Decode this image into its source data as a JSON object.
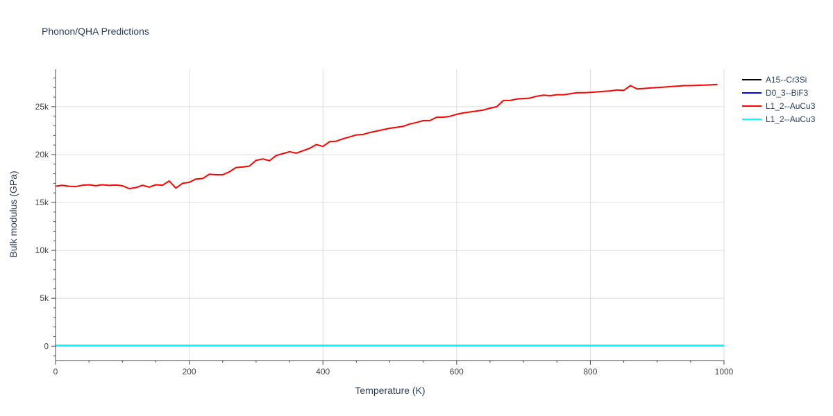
{
  "chart_data": {
    "type": "line",
    "title": "Phonon/QHA Predictions",
    "xlabel": "Temperature (K)",
    "ylabel": "Bulk modulus (GPa)",
    "xlim": [
      0,
      1000
    ],
    "ylim": [
      -1500,
      28900
    ],
    "xticks": [
      0,
      200,
      400,
      600,
      800,
      1000
    ],
    "xtick_labels": [
      "0",
      "200",
      "400",
      "600",
      "800",
      "1000"
    ],
    "yticks": [
      0,
      5000,
      10000,
      15000,
      20000,
      25000
    ],
    "ytick_labels": [
      "0",
      "5k",
      "10k",
      "15k",
      "20k",
      "25k"
    ],
    "grid": true,
    "legend_position": "top-right",
    "series": [
      {
        "name": "A15--Cr3Si",
        "color": "#000000",
        "x": [
          0,
          1000
        ],
        "y": [
          60,
          60
        ]
      },
      {
        "name": "D0_3--BiF3",
        "color": "#0000ff",
        "x": [
          0,
          1000
        ],
        "y": [
          60,
          60
        ]
      },
      {
        "name": "L1_2--AuCu3",
        "color": "#ff0000",
        "x": [
          0,
          10,
          20,
          30,
          40,
          50,
          60,
          70,
          80,
          90,
          100,
          110,
          120,
          130,
          140,
          150,
          160,
          170,
          180,
          190,
          200,
          210,
          220,
          230,
          240,
          250,
          260,
          270,
          280,
          290,
          300,
          310,
          320,
          330,
          340,
          350,
          360,
          370,
          380,
          390,
          400,
          410,
          420,
          430,
          440,
          450,
          460,
          470,
          480,
          490,
          500,
          510,
          520,
          530,
          540,
          550,
          560,
          570,
          580,
          590,
          600,
          610,
          620,
          630,
          640,
          650,
          660,
          670,
          680,
          690,
          700,
          710,
          720,
          730,
          740,
          750,
          760,
          770,
          780,
          790,
          800,
          810,
          820,
          830,
          840,
          850,
          860,
          870,
          880,
          890,
          900,
          910,
          920,
          930,
          940,
          950,
          960,
          970,
          980,
          990
        ],
        "y": [
          16700,
          16800,
          16700,
          16650,
          16800,
          16850,
          16750,
          16850,
          16780,
          16820,
          16750,
          16450,
          16550,
          16800,
          16600,
          16850,
          16800,
          17250,
          16500,
          17000,
          17100,
          17450,
          17500,
          17950,
          17900,
          17900,
          18200,
          18650,
          18700,
          18800,
          19400,
          19550,
          19350,
          19900,
          20100,
          20300,
          20150,
          20400,
          20650,
          21050,
          20850,
          21350,
          21400,
          21650,
          21850,
          22050,
          22100,
          22300,
          22450,
          22600,
          22750,
          22850,
          22950,
          23200,
          23350,
          23550,
          23550,
          23900,
          23900,
          24000,
          24200,
          24350,
          24450,
          24550,
          24650,
          24850,
          25000,
          25650,
          25650,
          25800,
          25850,
          25900,
          26100,
          26200,
          26150,
          26250,
          26250,
          26350,
          26450,
          26450,
          26500,
          26550,
          26600,
          26650,
          26750,
          26700,
          27200,
          26850,
          26900,
          26950,
          27000,
          27050,
          27100,
          27150,
          27200,
          27200,
          27230,
          27250,
          27280,
          27320
        ]
      },
      {
        "name": "L1_2--AuCu3",
        "color": "#00ffff",
        "x": [
          0,
          1000
        ],
        "y": [
          60,
          60
        ]
      }
    ]
  }
}
